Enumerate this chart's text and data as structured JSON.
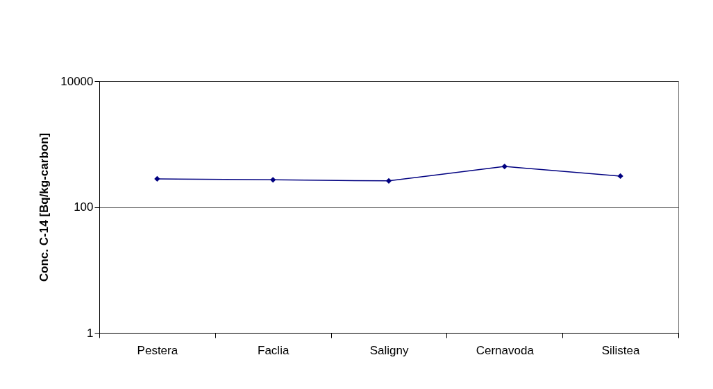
{
  "chart_data": {
    "type": "line",
    "ylabel": "Conc. C-14 [Bq/kg-carbon]",
    "categories": [
      "Pestera",
      "Faclia",
      "Saligny",
      "Cernavoda",
      "Silistea"
    ],
    "series": [
      {
        "color": "#000080",
        "values": [
          280,
          270,
          260,
          440,
          310
        ]
      }
    ],
    "log": true,
    "ylim": [
      1,
      10000
    ],
    "yticks": [
      1,
      100,
      10000
    ],
    "grid": "y",
    "marker": "diamond",
    "line_style": "solid"
  }
}
